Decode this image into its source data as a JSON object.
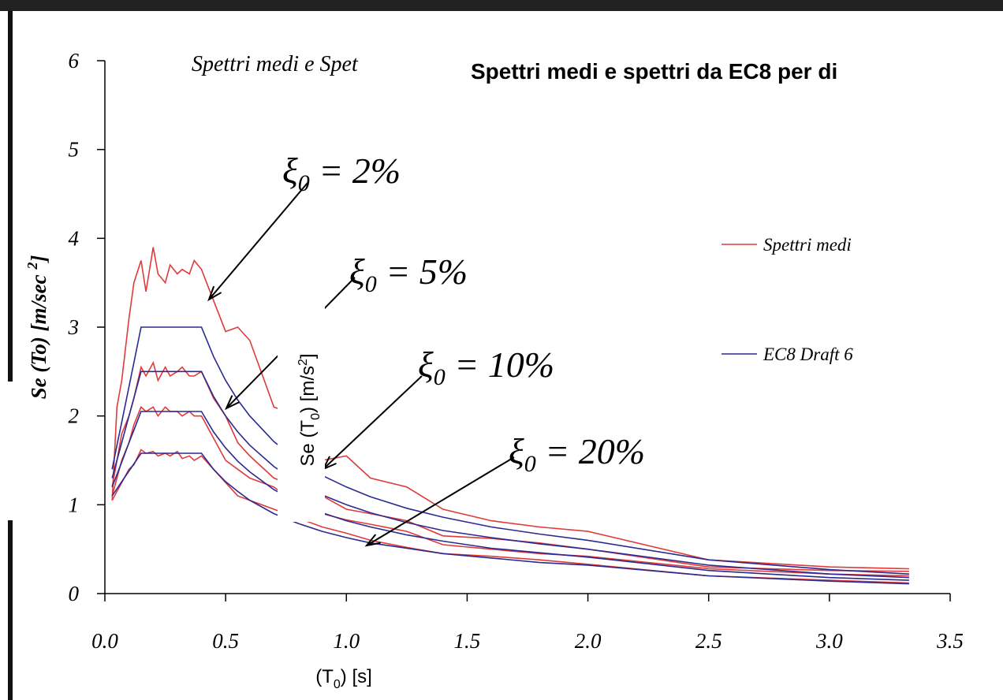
{
  "chart_data": {
    "type": "line",
    "title": "Spettri medi e Spet",
    "subtitle": "Spettri medi e spettri da EC8 per di",
    "x_label": {
      "pre": "(T",
      "sub": "0",
      "post": ") [s]"
    },
    "y_label": {
      "pre": "Se  (To)  [m/sec ",
      "sup": "2",
      "post": "]"
    },
    "y_label_2": {
      "pre": "Se (T",
      "sub": "0",
      "mid": ") [m/s",
      "sup": "2",
      "post": "]"
    },
    "xlim": [
      0,
      3.5
    ],
    "xticks": [
      {
        "value": 0,
        "label": "0.0"
      },
      {
        "value": 0.5,
        "label": "0.5"
      },
      {
        "value": 1,
        "label": "1.0"
      },
      {
        "value": 1.5,
        "label": "1.5"
      },
      {
        "value": 2,
        "label": "2.0"
      },
      {
        "value": 2.5,
        "label": "2.5"
      },
      {
        "value": 3,
        "label": "3.0"
      },
      {
        "value": 3.5,
        "label": "3.5"
      }
    ],
    "ylim": [
      0,
      6
    ],
    "yticks": [
      0,
      1,
      2,
      3,
      4,
      5,
      6
    ],
    "x": [
      0.03,
      0.05,
      0.07,
      0.1,
      0.12,
      0.15,
      0.17,
      0.2,
      0.22,
      0.25,
      0.27,
      0.3,
      0.32,
      0.35,
      0.37,
      0.4,
      0.45,
      0.5,
      0.55,
      0.6,
      0.7,
      0.8,
      0.9,
      1.0,
      1.1,
      1.25,
      1.4,
      1.6,
      1.8,
      2.0,
      2.5,
      3.0,
      3.33
    ],
    "series": [
      {
        "name": "Spettri medi",
        "color": "#e03a3a",
        "curves": [
          [
            1.05,
            2.1,
            2.4,
            3.1,
            3.5,
            3.75,
            3.4,
            3.9,
            3.6,
            3.5,
            3.7,
            3.6,
            3.65,
            3.6,
            3.75,
            3.65,
            3.3,
            2.95,
            3.0,
            2.85,
            2.1,
            2.0,
            1.5,
            1.55,
            1.3,
            1.2,
            0.95,
            0.82,
            0.75,
            0.7,
            0.38,
            0.3,
            0.28
          ],
          [
            1.2,
            1.5,
            1.8,
            2.0,
            2.2,
            2.55,
            2.45,
            2.6,
            2.4,
            2.55,
            2.45,
            2.5,
            2.55,
            2.45,
            2.45,
            2.5,
            2.2,
            2.0,
            1.7,
            1.55,
            1.3,
            1.2,
            1.1,
            0.95,
            0.9,
            0.82,
            0.65,
            0.62,
            0.57,
            0.5,
            0.3,
            0.26,
            0.25
          ],
          [
            1.1,
            1.3,
            1.5,
            1.7,
            1.9,
            2.1,
            2.05,
            2.1,
            2.0,
            2.1,
            2.05,
            2.05,
            2.0,
            2.05,
            2.0,
            2.0,
            1.75,
            1.5,
            1.4,
            1.3,
            1.2,
            1.0,
            0.9,
            0.83,
            0.78,
            0.7,
            0.55,
            0.5,
            0.45,
            0.42,
            0.28,
            0.22,
            0.2
          ],
          [
            1.05,
            1.15,
            1.25,
            1.4,
            1.45,
            1.62,
            1.58,
            1.6,
            1.55,
            1.58,
            1.55,
            1.6,
            1.52,
            1.55,
            1.5,
            1.55,
            1.4,
            1.25,
            1.1,
            1.05,
            0.95,
            0.85,
            0.75,
            0.68,
            0.6,
            0.52,
            0.45,
            0.42,
            0.38,
            0.33,
            0.2,
            0.15,
            0.12
          ]
        ]
      },
      {
        "name": "EC8 Draft 6",
        "color": "#2a2a90",
        "curves": [
          [
            1.4,
            1.67,
            1.93,
            2.33,
            2.6,
            3.0,
            3.0,
            3.0,
            3.0,
            3.0,
            3.0,
            3.0,
            3.0,
            3.0,
            3.0,
            3.0,
            2.67,
            2.4,
            2.18,
            2.0,
            1.71,
            1.5,
            1.33,
            1.2,
            1.09,
            0.96,
            0.86,
            0.75,
            0.67,
            0.6,
            0.38,
            0.27,
            0.22
          ],
          [
            1.3,
            1.5,
            1.7,
            2.0,
            2.2,
            2.5,
            2.5,
            2.5,
            2.5,
            2.5,
            2.5,
            2.5,
            2.5,
            2.5,
            2.5,
            2.5,
            2.22,
            2.0,
            1.82,
            1.67,
            1.43,
            1.25,
            1.11,
            1.0,
            0.91,
            0.8,
            0.71,
            0.63,
            0.56,
            0.5,
            0.32,
            0.22,
            0.18
          ],
          [
            1.2,
            1.34,
            1.48,
            1.7,
            1.84,
            2.05,
            2.05,
            2.05,
            2.05,
            2.05,
            2.05,
            2.05,
            2.05,
            2.05,
            2.05,
            2.05,
            1.82,
            1.64,
            1.49,
            1.37,
            1.17,
            1.03,
            0.91,
            0.82,
            0.75,
            0.66,
            0.59,
            0.51,
            0.46,
            0.41,
            0.26,
            0.18,
            0.15
          ],
          [
            1.1,
            1.18,
            1.26,
            1.38,
            1.46,
            1.58,
            1.58,
            1.58,
            1.58,
            1.58,
            1.58,
            1.58,
            1.58,
            1.58,
            1.58,
            1.58,
            1.4,
            1.26,
            1.15,
            1.05,
            0.9,
            0.79,
            0.7,
            0.63,
            0.57,
            0.51,
            0.45,
            0.4,
            0.35,
            0.32,
            0.2,
            0.14,
            0.11
          ]
        ]
      }
    ],
    "annotations": [
      {
        "symbol": "ξ",
        "sub": "0",
        "text": " = 2%"
      },
      {
        "symbol": "ξ",
        "sub": "0",
        "text": " = 5%"
      },
      {
        "symbol": "ξ",
        "sub": "0",
        "text": " = 10%"
      },
      {
        "symbol": "ξ",
        "sub": "0",
        "text": " = 20%"
      }
    ],
    "grid": false
  }
}
